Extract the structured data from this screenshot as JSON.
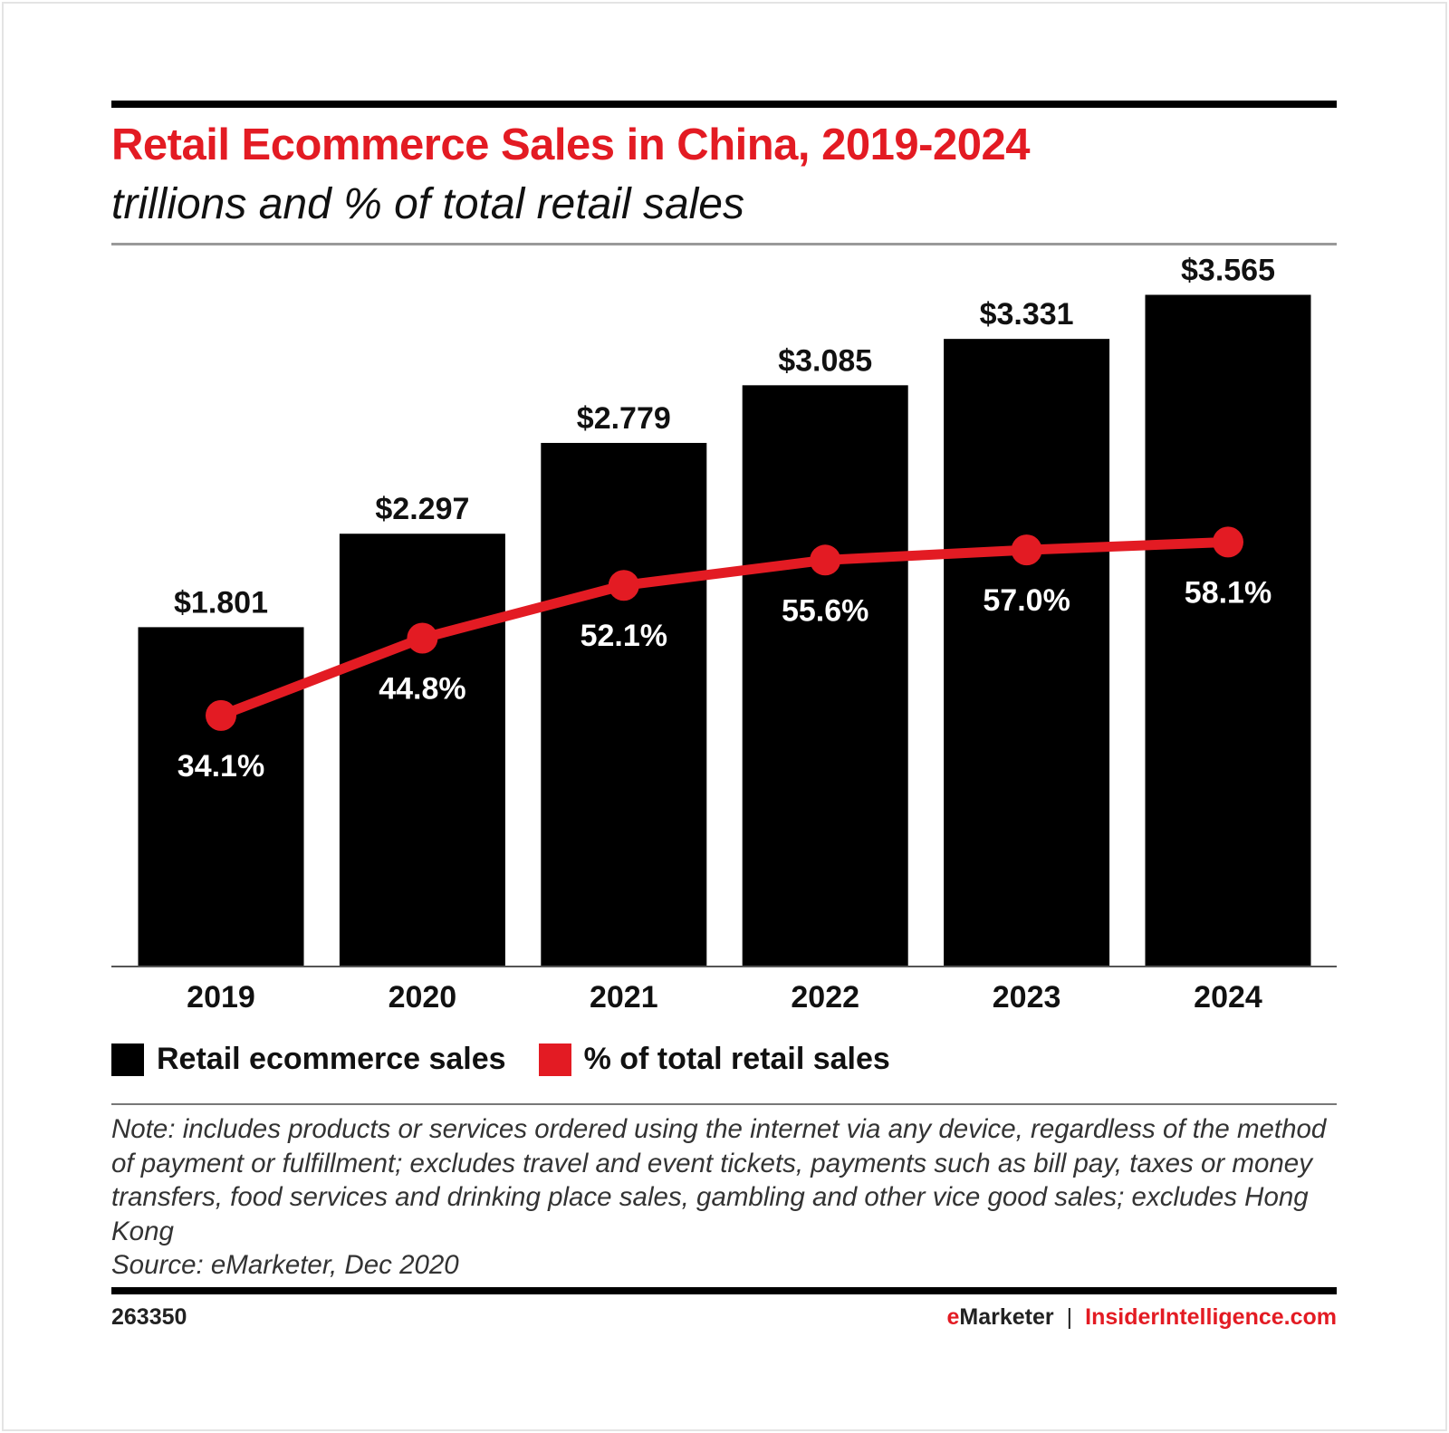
{
  "chart_data": {
    "type": "bar",
    "title": "Retail Ecommerce Sales in China, 2019-2024",
    "subtitle": "trillions and % of total retail sales",
    "categories": [
      "2019",
      "2020",
      "2021",
      "2022",
      "2023",
      "2024"
    ],
    "series": [
      {
        "name": "Retail ecommerce sales",
        "type": "bar",
        "values": [
          1.801,
          2.297,
          2.779,
          3.085,
          3.331,
          3.565
        ],
        "labels": [
          "$1.801",
          "$2.297",
          "$2.779",
          "$3.085",
          "$3.331",
          "$3.565"
        ],
        "color": "#000000"
      },
      {
        "name": "% of total retail sales",
        "type": "line",
        "values": [
          34.1,
          44.8,
          52.1,
          55.6,
          57.0,
          58.1
        ],
        "labels": [
          "34.1%",
          "44.8%",
          "52.1%",
          "55.6%",
          "57.0%",
          "58.1%"
        ],
        "color": "#e31b23"
      }
    ],
    "grid": false,
    "legend_placement": "bottom-left"
  },
  "note": "Note: includes products or services ordered using the internet via any device, regardless of the method of payment or fulfillment; excludes travel and event tickets, payments such as bill pay, taxes or money transfers, food services and drinking place sales, gambling and other vice good sales; excludes Hong Kong",
  "source": "Source: eMarketer, Dec 2020",
  "footer": {
    "id": "263350",
    "brand_e": "e",
    "brand_rest": "Marketer",
    "separator": "|",
    "site": "InsiderIntelligence.com"
  }
}
